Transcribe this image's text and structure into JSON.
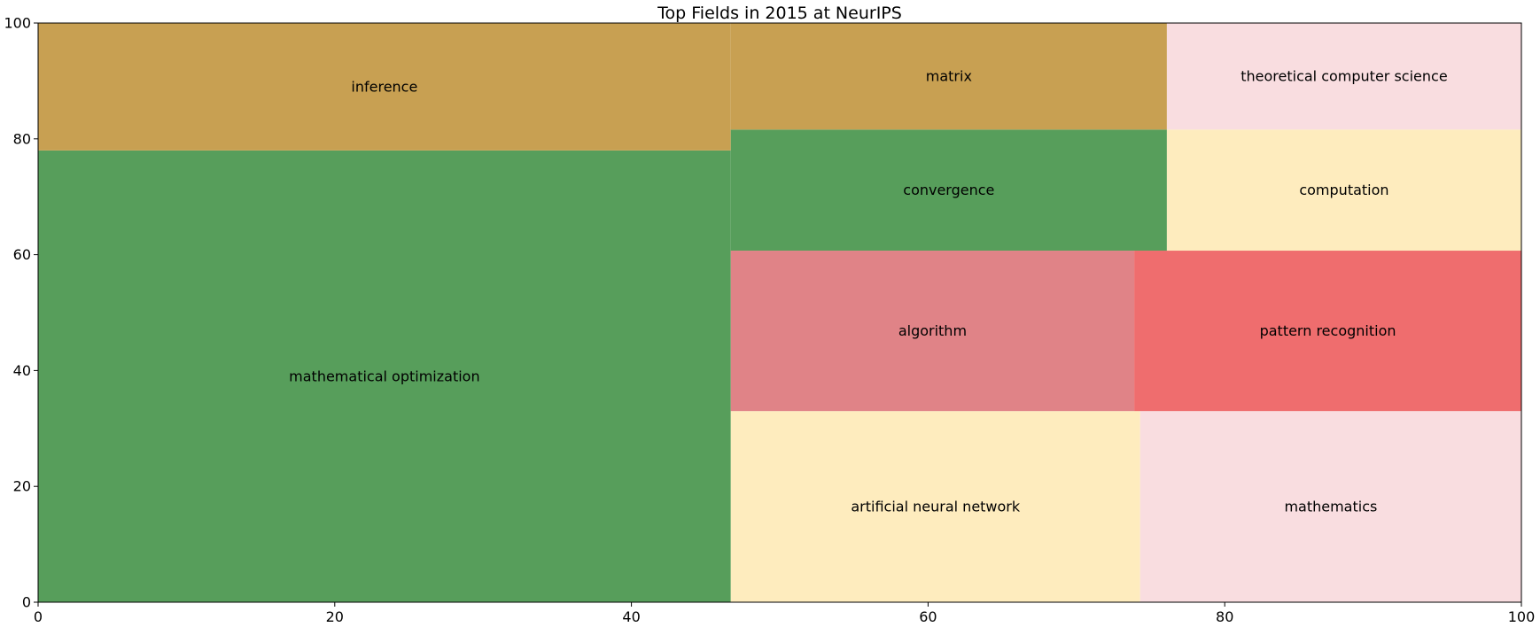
{
  "chart_data": {
    "type": "treemap",
    "title": "Top Fields in 2015 at NeurIPS",
    "xlim": [
      0,
      100
    ],
    "ylim": [
      0,
      100
    ],
    "xticks": [
      0,
      20,
      40,
      60,
      80,
      100
    ],
    "yticks": [
      0,
      20,
      40,
      60,
      80,
      100
    ],
    "cells": [
      {
        "label": "mathematical optimization",
        "x0": 0,
        "x1": 46.7,
        "y0": 0,
        "y1": 78,
        "color": "#579e5b"
      },
      {
        "label": "inference",
        "x0": 0,
        "x1": 46.7,
        "y0": 78,
        "y1": 100,
        "color": "#c8a052"
      },
      {
        "label": "artificial neural network",
        "x0": 46.7,
        "x1": 74.3,
        "y0": 0,
        "y1": 33,
        "color": "#feecbe"
      },
      {
        "label": "mathematics",
        "x0": 74.3,
        "x1": 100,
        "y0": 0,
        "y1": 33,
        "color": "#f9dde0"
      },
      {
        "label": "algorithm",
        "x0": 46.7,
        "x1": 73.9,
        "y0": 33,
        "y1": 60.7,
        "color": "#e08387"
      },
      {
        "label": "pattern recognition",
        "x0": 73.9,
        "x1": 100,
        "y0": 33,
        "y1": 60.7,
        "color": "#ef6d6e"
      },
      {
        "label": "convergence",
        "x0": 46.7,
        "x1": 76.1,
        "y0": 60.7,
        "y1": 81.6,
        "color": "#579e5b"
      },
      {
        "label": "matrix",
        "x0": 46.7,
        "x1": 76.1,
        "y0": 81.6,
        "y1": 100,
        "color": "#c8a052"
      },
      {
        "label": "computation",
        "x0": 76.1,
        "x1": 100,
        "y0": 60.7,
        "y1": 81.6,
        "color": "#feecbe"
      },
      {
        "label": "theoretical computer science",
        "x0": 76.1,
        "x1": 100,
        "y0": 81.6,
        "y1": 100,
        "color": "#f9dde0"
      }
    ]
  }
}
